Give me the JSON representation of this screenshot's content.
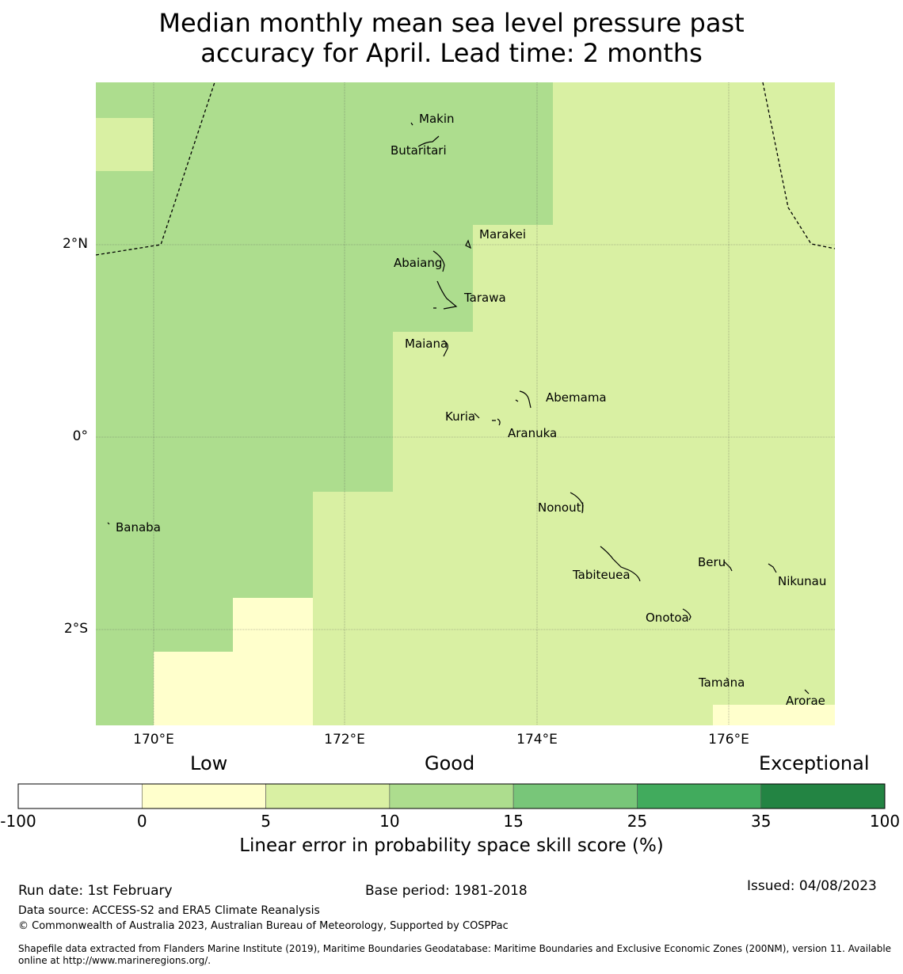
{
  "title": {
    "line1": "Median monthly mean sea level pressure past",
    "line2": "accuracy for April. Lead time: 2 months"
  },
  "map": {
    "lat_labels": [
      "2°N",
      "0°",
      "2°S"
    ],
    "lon_labels": [
      "170°E",
      "172°E",
      "174°E",
      "176°E"
    ],
    "islands": [
      {
        "name": "Makin"
      },
      {
        "name": "Butaritari"
      },
      {
        "name": "Marakei"
      },
      {
        "name": "Abaiang"
      },
      {
        "name": "Tarawa"
      },
      {
        "name": "Maiana"
      },
      {
        "name": "Abemama"
      },
      {
        "name": "Kuria"
      },
      {
        "name": "Aranuka"
      },
      {
        "name": "Nonouti"
      },
      {
        "name": "Banaba"
      },
      {
        "name": "Tabiteuea"
      },
      {
        "name": "Beru"
      },
      {
        "name": "Nikunau"
      },
      {
        "name": "Onotoa"
      },
      {
        "name": "Tamana"
      },
      {
        "name": "Arorae"
      }
    ],
    "colors": {
      "low": "#ffffcc",
      "good_low": "#d9f0a3",
      "good_high": "#addd8e",
      "boundary": "#000000"
    }
  },
  "colorbar": {
    "categories": [
      "Low",
      "Good",
      "Exceptional"
    ],
    "ticks": [
      "-100",
      "0",
      "5",
      "10",
      "15",
      "25",
      "35",
      "100"
    ],
    "colors": [
      "#ffffff",
      "#ffffcc",
      "#d9f0a3",
      "#addd8e",
      "#78c679",
      "#41ab5d",
      "#238443"
    ],
    "label": "Linear error in probability space skill score (%)"
  },
  "footer": {
    "run_date": "Run date: 1st February",
    "base_period": "Base period: 1981-2018",
    "issued": "Issued: 04/08/2023",
    "data_source": "Data source: ACCESS-S2 and ERA5 Climate Reanalysis",
    "copyright": "© Commonwealth of Australia 2023, Australian Bureau of Meteorology, Supported by COSPPac",
    "shapefile_line1": "Shapefile data extracted from Flanders Marine Institute (2019), Maritime Boundaries Geodatabase: Maritime Boundaries and Exclusive Economic Zones (200NM), version 11. Available",
    "shapefile_line2": "online at http://www.marineregions.org/."
  }
}
